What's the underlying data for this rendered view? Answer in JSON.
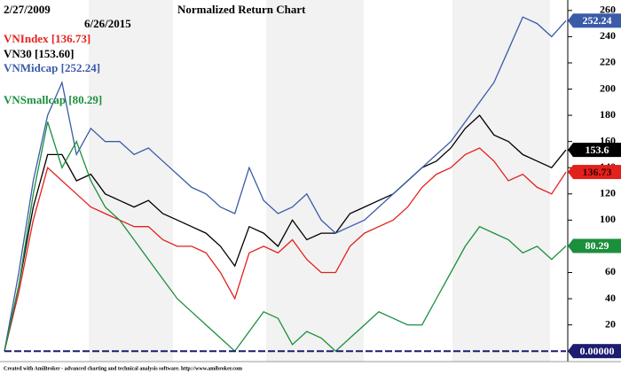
{
  "chart_data": {
    "type": "line",
    "title": "Normalized Return Chart",
    "start_date": "2/27/2009",
    "end_date": "6/26/2015",
    "footer": "Created with AmiBroker - advanced charting and technical analysis software. http://www.amibroker.com",
    "ylim": [
      -8,
      268
    ],
    "yticks": [
      0,
      20,
      40,
      60,
      80,
      100,
      120,
      140,
      160,
      180,
      200,
      220,
      240,
      260
    ],
    "series": [
      {
        "name": "VNIndex",
        "legend": "VNIndex [136.73]",
        "end_label": "136.73",
        "color": "#e3211c",
        "values": [
          0,
          45,
          100,
          140,
          130,
          120,
          110,
          105,
          100,
          95,
          95,
          85,
          80,
          80,
          75,
          60,
          40,
          75,
          80,
          75,
          85,
          70,
          60,
          60,
          80,
          90,
          95,
          100,
          110,
          125,
          135,
          140,
          150,
          155,
          145,
          130,
          135,
          125,
          120,
          136.73
        ]
      },
      {
        "name": "VN30",
        "legend": "VN30 [153.60]",
        "end_label": "153.6",
        "color": "#000000",
        "values": [
          0,
          50,
          110,
          150,
          150,
          130,
          135,
          120,
          115,
          110,
          115,
          105,
          100,
          95,
          90,
          80,
          65,
          95,
          90,
          80,
          100,
          85,
          90,
          90,
          105,
          110,
          115,
          120,
          130,
          140,
          145,
          155,
          170,
          180,
          165,
          160,
          150,
          145,
          140,
          153.6
        ]
      },
      {
        "name": "VNMidcap",
        "legend": "VNMidcap [252.24]",
        "end_label": "252.24",
        "color": "#3b5ba9",
        "values": [
          0,
          60,
          130,
          180,
          205,
          150,
          170,
          160,
          160,
          150,
          155,
          145,
          135,
          125,
          120,
          110,
          105,
          140,
          115,
          105,
          110,
          120,
          100,
          90,
          95,
          100,
          110,
          120,
          130,
          140,
          150,
          160,
          175,
          190,
          205,
          230,
          255,
          250,
          240,
          252.24
        ]
      },
      {
        "name": "VNSmallcap",
        "legend": "VNSmallcap [80.29]",
        "end_label": "80.29",
        "color": "#1b8f3c",
        "values": [
          0,
          50,
          120,
          175,
          140,
          160,
          130,
          110,
          100,
          85,
          70,
          55,
          40,
          30,
          20,
          10,
          0,
          15,
          30,
          25,
          5,
          15,
          10,
          0,
          10,
          20,
          30,
          25,
          20,
          20,
          40,
          60,
          80,
          95,
          90,
          85,
          75,
          80,
          70,
          80.29
        ]
      },
      {
        "end_label": "0.00000",
        "color": "#1c1c70",
        "dashed": true,
        "values": [
          0,
          0,
          0,
          0,
          0,
          0,
          0,
          0,
          0,
          0,
          0,
          0,
          0,
          0,
          0,
          0,
          0,
          0,
          0,
          0,
          0,
          0,
          0,
          0,
          0,
          0,
          0,
          0,
          0,
          0,
          0,
          0,
          0,
          0,
          0,
          0,
          0,
          0,
          0,
          0
        ]
      }
    ]
  }
}
